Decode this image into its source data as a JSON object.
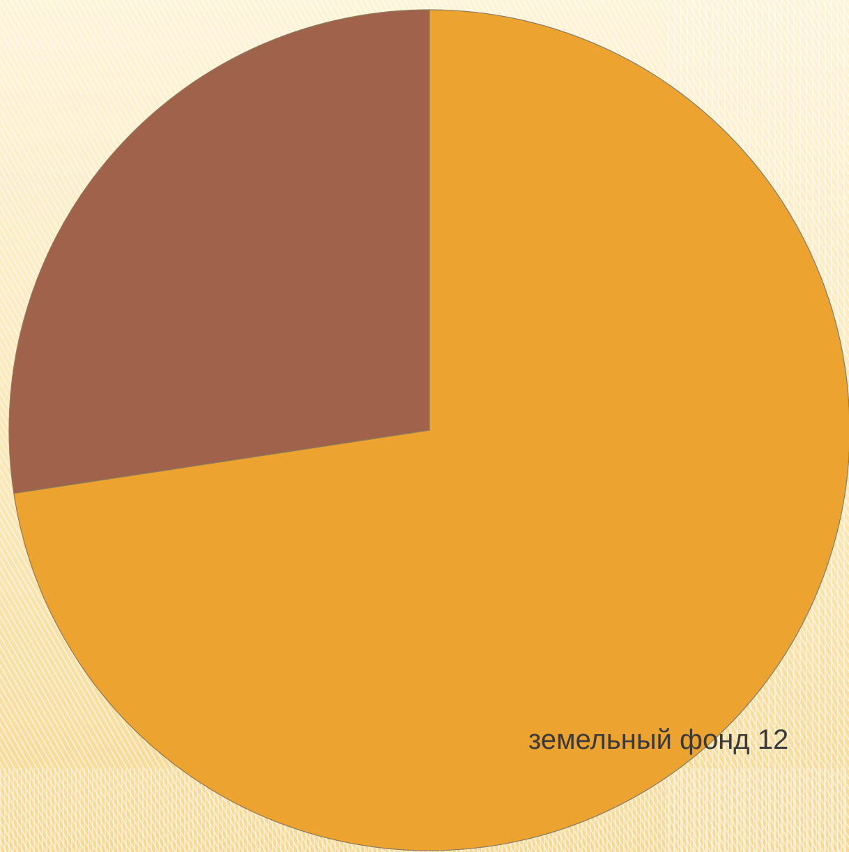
{
  "chart_data": {
    "type": "pie",
    "title": "",
    "legend": "none",
    "slices": [
      {
        "value": 72.6,
        "color": "#eca330",
        "label": "земельный фонд  12"
      },
      {
        "value": 27.4,
        "color": "#a0624b",
        "label": ""
      }
    ],
    "start_angle_deg": 0,
    "direction": "clockwise"
  }
}
